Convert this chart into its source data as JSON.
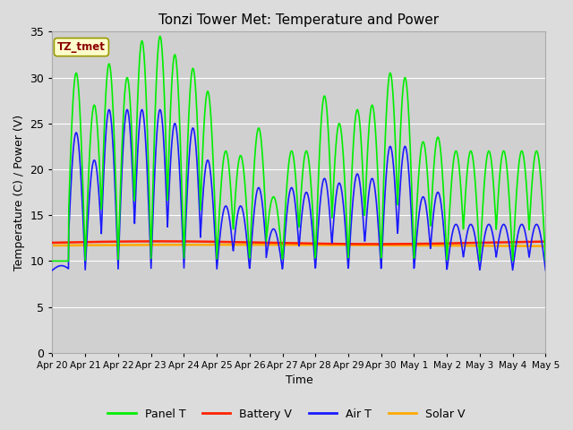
{
  "title": "Tonzi Tower Met: Temperature and Power",
  "xlabel": "Time",
  "ylabel": "Temperature (C) / Power (V)",
  "ylim": [
    0,
    35
  ],
  "yticks": [
    0,
    5,
    10,
    15,
    20,
    25,
    30,
    35
  ],
  "x_labels": [
    "Apr 20",
    "Apr 21",
    "Apr 22",
    "Apr 23",
    "Apr 24",
    "Apr 25",
    "Apr 26",
    "Apr 27",
    "Apr 28",
    "Apr 29",
    "Apr 30",
    "May 1",
    "May 2",
    "May 3",
    "May 4",
    "May 5"
  ],
  "background_color": "#dcdcdc",
  "plot_bg_color_top": "#e8e8e8",
  "plot_bg_color_bot": "#c8c8c8",
  "annotation_text": "TZ_tmet",
  "annotation_bg": "#ffffcc",
  "annotation_fg": "#8b0000",
  "annotation_edge": "#999900",
  "panel_T_color": "#00ee00",
  "battery_V_color": "#ff2200",
  "air_T_color": "#1a1aff",
  "solar_V_color": "#ffaa00",
  "legend_labels": [
    "Panel T",
    "Battery V",
    "Air T",
    "Solar V"
  ],
  "panel_peaks": [
    10.0,
    30.5,
    27.0,
    31.5,
    30.0,
    34.0,
    34.5,
    32.5,
    31.0,
    28.5,
    22.0,
    21.5,
    24.5,
    17.0,
    22.0,
    22.0,
    28.0,
    25.0,
    26.5,
    27.0,
    30.5,
    30.0,
    23.0,
    23.5,
    22.0
  ],
  "air_peaks": [
    9.5,
    24.0,
    21.0,
    26.5,
    26.5,
    26.5,
    26.5,
    25.0,
    24.5,
    21.0,
    16.0,
    16.0,
    18.0,
    13.5,
    18.0,
    17.5,
    19.0,
    18.5,
    19.5,
    19.0,
    22.5,
    22.5,
    17.0,
    17.5,
    14.0
  ],
  "battery_V_level": 12.0,
  "solar_V_level": 11.7
}
